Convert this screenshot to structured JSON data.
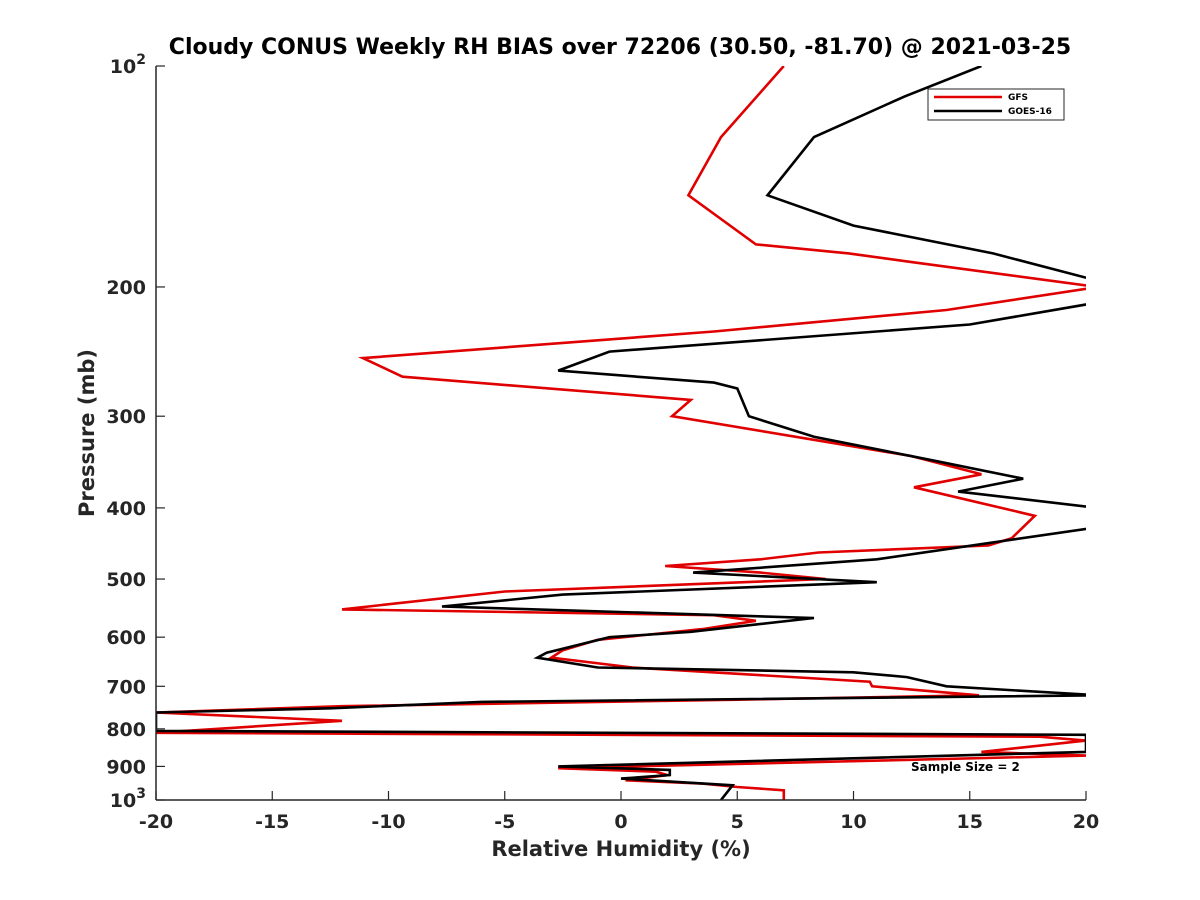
{
  "chart_data": {
    "type": "line",
    "title": "Cloudy CONUS Weekly RH BIAS over 72206 (30.50, -81.70) @ 2021-03-25",
    "xlabel": "Relative Humidity (%)",
    "ylabel": "Pressure (mb)",
    "xlim": [
      -20,
      20
    ],
    "ylim": [
      100,
      1000
    ],
    "yscale": "log",
    "y_reversed": true,
    "grid": false,
    "legend_position": "top-right",
    "xticks": [
      -20,
      -15,
      -10,
      -5,
      0,
      5,
      10,
      15,
      20
    ],
    "xtick_labels": [
      "-20",
      "-15",
      "-10",
      "-5",
      "0",
      "5",
      "10",
      "15",
      "20"
    ],
    "yticks": [
      {
        "value": 100,
        "base": "10",
        "exp": "2"
      },
      {
        "value": 200,
        "label": "200"
      },
      {
        "value": 300,
        "label": "300"
      },
      {
        "value": 400,
        "label": "400"
      },
      {
        "value": 500,
        "label": "500"
      },
      {
        "value": 600,
        "label": "600"
      },
      {
        "value": 700,
        "label": "700"
      },
      {
        "value": 800,
        "label": "800"
      },
      {
        "value": 900,
        "label": "900"
      },
      {
        "value": 1000,
        "base": "10",
        "exp": "3"
      }
    ],
    "series": [
      {
        "name": "GFS",
        "color": "#e00000",
        "points": [
          [
            7.0,
            100
          ],
          [
            4.3,
            125
          ],
          [
            2.9,
            150
          ],
          [
            5.8,
            175
          ],
          [
            9.8,
            180
          ],
          [
            12.5,
            185
          ],
          [
            20.5,
            200
          ],
          [
            14.0,
            215
          ],
          [
            4.0,
            230
          ],
          [
            -11.1,
            250
          ],
          [
            -9.4,
            265
          ],
          [
            3.0,
            285
          ],
          [
            2.2,
            300
          ],
          [
            12.5,
            340
          ],
          [
            15.5,
            360
          ],
          [
            12.6,
            375
          ],
          [
            17.8,
            410
          ],
          [
            16.8,
            440
          ],
          [
            15.8,
            450
          ],
          [
            8.5,
            460
          ],
          [
            6.0,
            470
          ],
          [
            1.9,
            480
          ],
          [
            6.0,
            490
          ],
          [
            8.8,
            500
          ],
          [
            -5.0,
            520
          ],
          [
            -12.0,
            550
          ],
          [
            4.0,
            560
          ],
          [
            5.8,
            570
          ],
          [
            3.5,
            585
          ],
          [
            -1.0,
            605
          ],
          [
            -2.5,
            625
          ],
          [
            -3.0,
            640
          ],
          [
            0.5,
            660
          ],
          [
            10.7,
            690
          ],
          [
            10.8,
            700
          ],
          [
            15.4,
            720
          ],
          [
            5.0,
            730
          ],
          [
            -12.0,
            745
          ],
          [
            -20.0,
            760
          ],
          [
            -12.0,
            780
          ],
          [
            -20.0,
            810
          ],
          [
            18.0,
            820
          ],
          [
            20.0,
            830
          ],
          [
            15.5,
            860
          ],
          [
            20.0,
            870
          ],
          [
            -2.7,
            905
          ],
          [
            1.5,
            915
          ],
          [
            2.0,
            925
          ],
          [
            0.2,
            940
          ],
          [
            3.5,
            950
          ],
          [
            5.0,
            960
          ],
          [
            7.0,
            970
          ],
          [
            7.0,
            1000
          ]
        ]
      },
      {
        "name": "GOES-16",
        "color": "#000000",
        "points": [
          [
            15.5,
            100
          ],
          [
            12.2,
            110
          ],
          [
            8.3,
            125
          ],
          [
            6.3,
            150
          ],
          [
            10.0,
            165
          ],
          [
            16.0,
            180
          ],
          [
            20.2,
            195
          ],
          [
            20.5,
            210
          ],
          [
            15.0,
            225
          ],
          [
            -0.5,
            245
          ],
          [
            -2.7,
            260
          ],
          [
            4.0,
            270
          ],
          [
            5.0,
            275
          ],
          [
            5.5,
            300
          ],
          [
            8.3,
            320
          ],
          [
            13.5,
            345
          ],
          [
            17.3,
            365
          ],
          [
            14.5,
            380
          ],
          [
            20.5,
            400
          ],
          [
            20.5,
            425
          ],
          [
            11.0,
            470
          ],
          [
            3.1,
            490
          ],
          [
            11.0,
            505
          ],
          [
            -2.5,
            525
          ],
          [
            -7.7,
            545
          ],
          [
            8.3,
            565
          ],
          [
            3.0,
            590
          ],
          [
            -0.5,
            600
          ],
          [
            -3.2,
            630
          ],
          [
            -3.6,
            640
          ],
          [
            -1.0,
            660
          ],
          [
            10.0,
            670
          ],
          [
            12.3,
            680
          ],
          [
            14.0,
            700
          ],
          [
            20.5,
            720
          ],
          [
            -6.0,
            735
          ],
          [
            -12.5,
            750
          ],
          [
            -20.0,
            760
          ],
          [
            -20.0,
            805
          ],
          [
            20.0,
            815
          ],
          [
            20.0,
            860
          ],
          [
            -2.7,
            900
          ],
          [
            2.1,
            910
          ],
          [
            2.1,
            925
          ],
          [
            0.0,
            935
          ],
          [
            4.8,
            955
          ],
          [
            4.3,
            1000
          ]
        ]
      }
    ],
    "annotations": [
      "Sample Size = 2"
    ]
  }
}
